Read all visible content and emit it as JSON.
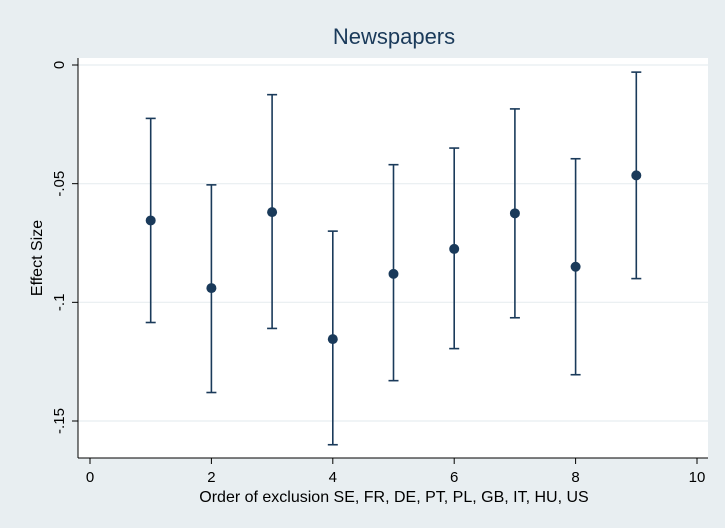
{
  "chart_data": {
    "type": "scatter",
    "title": "Newspapers",
    "xlabel": "Order of exclusion SE, FR, DE, PT, PL, GB, IT, HU, US",
    "ylabel": "Effect Size",
    "xlim": [
      0,
      10
    ],
    "ylim": [
      -0.16,
      0
    ],
    "x_ticks": [
      0,
      2,
      4,
      6,
      8,
      10
    ],
    "x_tick_labels": [
      "0",
      "2",
      "4",
      "6",
      "8",
      "10"
    ],
    "y_ticks": [
      0,
      -0.05,
      -0.1,
      -0.15
    ],
    "y_tick_labels": [
      "0",
      "-.05",
      "-.1",
      "-.15"
    ],
    "grid": true,
    "legend": "none",
    "error_bars": true,
    "points": [
      {
        "x": 1,
        "y": -0.0655,
        "lo": -0.1085,
        "hi": -0.0225
      },
      {
        "x": 2,
        "y": -0.094,
        "lo": -0.138,
        "hi": -0.0505
      },
      {
        "x": 3,
        "y": -0.062,
        "lo": -0.111,
        "hi": -0.0125
      },
      {
        "x": 4,
        "y": -0.1155,
        "lo": -0.16,
        "hi": -0.07
      },
      {
        "x": 5,
        "y": -0.088,
        "lo": -0.133,
        "hi": -0.042
      },
      {
        "x": 6,
        "y": -0.0775,
        "lo": -0.1195,
        "hi": -0.035
      },
      {
        "x": 7,
        "y": -0.0625,
        "lo": -0.1065,
        "hi": -0.0185
      },
      {
        "x": 8,
        "y": -0.085,
        "lo": -0.1305,
        "hi": -0.0395
      },
      {
        "x": 9,
        "y": -0.0465,
        "lo": -0.09,
        "hi": -0.003
      }
    ],
    "colors": {
      "background": "#e8eef1",
      "plot_background": "#ffffff",
      "marker": "#1a3a5a",
      "gridline": "#e8eef1",
      "title": "#1a3a5a"
    }
  }
}
